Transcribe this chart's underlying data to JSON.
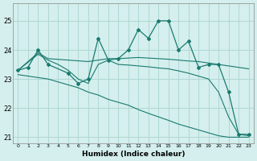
{
  "xlabel": "Humidex (Indice chaleur)",
  "bg_color": "#d4efed",
  "grid_color": "#b0d8d4",
  "line_color": "#1a7a6e",
  "xlim": [
    -0.5,
    23.5
  ],
  "ylim": [
    20.8,
    25.6
  ],
  "yticks": [
    21,
    22,
    23,
    24,
    25
  ],
  "xticks": [
    0,
    1,
    2,
    3,
    4,
    5,
    6,
    7,
    8,
    9,
    10,
    11,
    12,
    13,
    14,
    15,
    16,
    17,
    18,
    19,
    20,
    21,
    22,
    23
  ],
  "series": [
    {
      "x": [
        0,
        1,
        2,
        3,
        5,
        6,
        7,
        8,
        9,
        10,
        11,
        12,
        13,
        14,
        15,
        16,
        17,
        18,
        19,
        20,
        21,
        22,
        23
      ],
      "y": [
        23.3,
        23.4,
        24.0,
        23.5,
        23.2,
        22.85,
        23.0,
        24.4,
        23.65,
        23.7,
        24.0,
        24.7,
        24.4,
        25.0,
        25.0,
        24.0,
        24.3,
        23.4,
        23.5,
        23.5,
        22.55,
        21.1,
        21.1
      ],
      "marker": "D",
      "markersize": 2.0,
      "lw": 0.9
    },
    {
      "x": [
        0,
        2,
        3,
        7,
        8,
        9,
        10,
        11,
        12,
        13,
        14,
        15,
        16,
        17,
        18,
        19,
        20,
        21,
        22,
        23
      ],
      "y": [
        23.3,
        23.9,
        23.7,
        23.6,
        23.65,
        23.7,
        23.7,
        23.72,
        23.74,
        23.72,
        23.7,
        23.68,
        23.65,
        23.62,
        23.6,
        23.55,
        23.5,
        23.45,
        23.4,
        23.35
      ],
      "marker": null,
      "markersize": 0,
      "lw": 0.8
    },
    {
      "x": [
        0,
        2,
        3,
        4,
        5,
        6,
        7,
        8,
        9,
        10,
        11,
        12,
        13,
        14,
        15,
        16,
        17,
        18,
        19,
        20,
        21,
        22,
        23
      ],
      "y": [
        23.3,
        23.85,
        23.65,
        23.5,
        23.3,
        23.0,
        22.85,
        23.5,
        23.65,
        23.5,
        23.48,
        23.45,
        23.42,
        23.38,
        23.35,
        23.28,
        23.2,
        23.1,
        23.0,
        22.55,
        21.7,
        21.1,
        21.05
      ],
      "marker": null,
      "markersize": 0,
      "lw": 0.8
    },
    {
      "x": [
        0,
        1,
        2,
        3,
        4,
        5,
        6,
        7,
        8,
        9,
        10,
        11,
        12,
        13,
        14,
        15,
        16,
        17,
        18,
        19,
        20,
        21,
        22,
        23
      ],
      "y": [
        23.15,
        23.1,
        23.05,
        23.0,
        22.9,
        22.8,
        22.7,
        22.55,
        22.45,
        22.3,
        22.2,
        22.1,
        21.95,
        21.82,
        21.7,
        21.58,
        21.45,
        21.35,
        21.25,
        21.15,
        21.05,
        21.0,
        21.0,
        21.0
      ],
      "marker": null,
      "markersize": 0,
      "lw": 0.8
    }
  ]
}
